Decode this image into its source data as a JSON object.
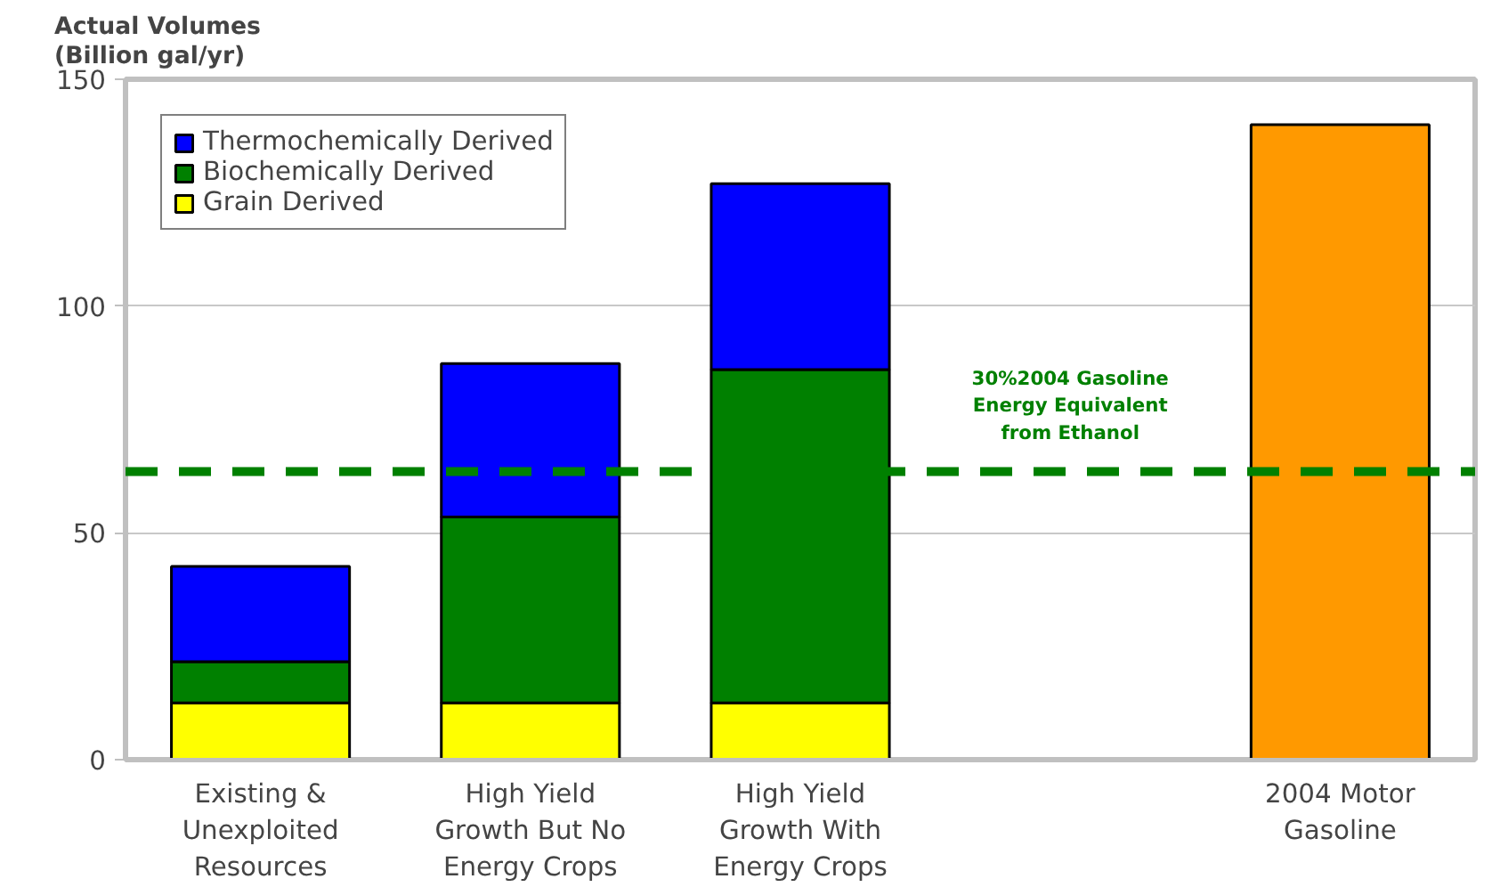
{
  "chart_data": {
    "type": "bar",
    "stacked": true,
    "ylabel": "Actual Volumes (Billion gal/yr)",
    "categories": [
      "Existing & Unexploited Resources",
      "High Yield Growth But No Energy Crops",
      "High Yield Growth With Energy Crops",
      null,
      "2004 Motor Gasoline"
    ],
    "series": [
      {
        "name": "Grain Derived",
        "color": "#ffff00",
        "values": [
          12.5,
          12.5,
          12.5,
          null,
          null
        ]
      },
      {
        "name": "Biochemically Derived",
        "color": "#008000",
        "values": [
          9.1,
          41,
          73.5,
          null,
          null
        ]
      },
      {
        "name": "Thermochemically Derived",
        "color": "#0000ff",
        "values": [
          21,
          33.8,
          41,
          null,
          null
        ]
      },
      {
        "color": "#ff9900",
        "values": [
          null,
          null,
          null,
          null,
          140
        ]
      }
    ],
    "ylim": [
      0,
      150
    ],
    "yticks": [
      0,
      50,
      100,
      150
    ],
    "grid": "y",
    "legend": "top left",
    "ref_lines": [
      {
        "axis": "y",
        "value": 63.5,
        "label": "30%2004 Gasoline Energy Equivalent from Ethanol",
        "color": "#008000",
        "line_style": "dashed"
      }
    ]
  }
}
